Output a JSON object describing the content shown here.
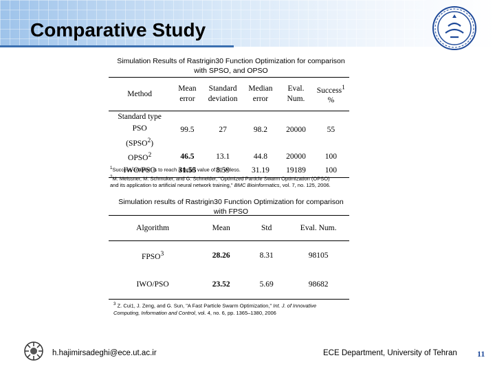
{
  "title": "Comparative Study",
  "table1": {
    "caption_line1": "Simulation Results of Rastrigin30 Function Optimization for comparison",
    "caption_line2": "with SPSO, and OPSO",
    "headers": {
      "method": "Method",
      "mean_1": "Mean",
      "mean_2": "error",
      "std_1": "Standard",
      "std_2": "deviation",
      "median_1": "Median",
      "median_2": "error",
      "eval_1": "Eval.",
      "eval_2": "Num.",
      "success_1": "Success",
      "success_sup": "1",
      "success_2": "%"
    },
    "rows": [
      {
        "method_1": "Standard type PSO",
        "method_2": "(SPSO",
        "method_sup": "2",
        "method_end": ")",
        "mean": "99.5",
        "std": "27",
        "median": "98.2",
        "eval": "20000",
        "success": "55"
      },
      {
        "method": "OPSO",
        "method_sup": "2",
        "mean": "46.5",
        "std": "13.1",
        "median": "44.8",
        "eval": "20000",
        "success": "100"
      },
      {
        "method": "IWO/PSO",
        "mean": "31.55",
        "std": "8.59",
        "median": "31.19",
        "eval": "19189",
        "success": "100"
      }
    ],
    "footnote1_sup": "1",
    "footnote1": "Success criterion is to reach a target value of 50 or less.",
    "footnote2_sup": "2",
    "footnote2_a": "M. Meissner, M.  Schmuker, and G. Schneider, \"Optimized Particle Swarm Optimization (OPSO)",
    "footnote2_b": "and its application to artificial neural network training,\"",
    "footnote2_journal": "BMC Bioinformatics",
    "footnote2_c": ", vol. 7, no. 125, 2006."
  },
  "table2": {
    "caption_line1": "Simulation results of Rastrigin30 Function Optimization for comparison",
    "caption_line2": "with FPSO",
    "headers": {
      "algorithm": "Algorithm",
      "mean": "Mean",
      "std": "Std",
      "eval": "Eval. Num."
    },
    "rows": [
      {
        "algorithm": "FPSO",
        "algorithm_sup": "3",
        "mean": "28.26",
        "std": "8.31",
        "eval": "98105"
      },
      {
        "algorithm": "IWO/PSO",
        "mean": "23.52",
        "std": "5.69",
        "eval": "98682"
      }
    ],
    "footnote3_sup": "3",
    "footnote3_a": "Z. Cui1, J. Zeng, and G. Sun, \"A Fast Particle Swarm Optimization,\"",
    "footnote3_journal_a": "Int. J. of Innovative",
    "footnote3_journal_b": "Computing, Information and Control",
    "footnote3_b": ", vol. 4, no. 6, pp. 1365–1380, 2006"
  },
  "footer": {
    "email": "h.hajimirsadeghi@ece.ut.ac.ir",
    "department": "ECE Department, University of Tehran",
    "page_number": "11"
  },
  "icons": {
    "seal": "university-seal-icon",
    "logo": "faculty-logo-icon"
  },
  "colors": {
    "header_band": "#9ec3ea",
    "underline": "#3a6fb0",
    "page_number": "#1f4a99"
  }
}
